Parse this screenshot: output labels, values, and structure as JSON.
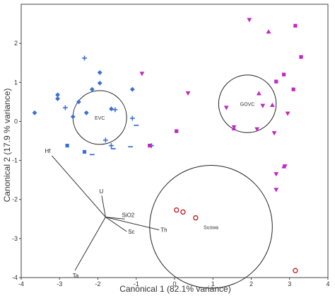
{
  "chart_data": {
    "type": "scatter",
    "title": "",
    "xlabel": "Canonical 1 (82.1% variance)",
    "ylabel": "Canonical 2 (17.9 % variance)",
    "xlim": [
      -4,
      4
    ],
    "ylim": [
      -4,
      3
    ],
    "xticks": [
      "-4",
      "-3",
      "-2",
      "-1",
      "0",
      "1",
      "2",
      "3",
      "4"
    ],
    "yticks": [
      "-4",
      "-3",
      "-2",
      "-1",
      "0",
      "1",
      "2"
    ],
    "grid": false,
    "colors": {
      "blue": "#3b6fd6",
      "magenta": "#c326c3",
      "red": "#c0242b",
      "ink": "#222222"
    },
    "series": [
      {
        "color": "#3b6fd6",
        "marker": "diamond",
        "points": [
          [
            -3.65,
            0.22
          ],
          [
            -3.05,
            0.68
          ],
          [
            -3.05,
            0.58
          ],
          [
            -2.65,
            0.12
          ],
          [
            -2.5,
            0.5
          ],
          [
            -2.3,
            0.22
          ],
          [
            -2.15,
            0.82
          ],
          [
            -1.95,
            1.25
          ],
          [
            -1.95,
            0.98
          ],
          [
            -1.65,
            0.32
          ],
          [
            -1.1,
            0.82
          ]
        ]
      },
      {
        "color": "#3b6fd6",
        "marker": "plus",
        "points": [
          [
            -2.35,
            1.62
          ],
          [
            -2.85,
            0.35
          ],
          [
            -1.1,
            0.08
          ],
          [
            -1.8,
            -0.48
          ],
          [
            -1.65,
            -0.62
          ],
          [
            -0.6,
            -0.62
          ],
          [
            -1.55,
            0.3
          ]
        ]
      },
      {
        "color": "#3b6fd6",
        "marker": "square",
        "points": [
          [
            -2.8,
            -0.62
          ],
          [
            -2.35,
            -0.78
          ]
        ]
      },
      {
        "color": "#3b6fd6",
        "marker": "dash",
        "points": [
          [
            -2.15,
            -0.85
          ],
          [
            -1.6,
            -0.7
          ],
          [
            -1.15,
            -0.65
          ],
          [
            -1.0,
            -0.1
          ]
        ]
      },
      {
        "color": "#c326c3",
        "marker": "triangle-down",
        "points": [
          [
            -0.85,
            1.22
          ],
          [
            0.35,
            0.72
          ],
          [
            1.95,
            2.6
          ],
          [
            1.35,
            0.35
          ],
          [
            1.55,
            -0.15
          ],
          [
            2.15,
            -0.2
          ],
          [
            2.6,
            -0.3
          ],
          [
            2.3,
            0.4
          ],
          [
            2.65,
            -1.75
          ],
          [
            2.65,
            -1.35
          ],
          [
            2.88,
            -1.15
          ],
          [
            2.95,
            0.2
          ]
        ]
      },
      {
        "color": "#c326c3",
        "marker": "triangle-up",
        "points": [
          [
            2.45,
            2.3
          ],
          [
            2.2,
            0.72
          ],
          [
            2.55,
            0.42
          ],
          [
            1.55,
            -0.18
          ],
          [
            2.85,
            -1.15
          ]
        ]
      },
      {
        "color": "#c326c3",
        "marker": "square",
        "points": [
          [
            -0.65,
            -0.62
          ],
          [
            0.05,
            -0.25
          ],
          [
            3.15,
            2.45
          ],
          [
            2.85,
            1.2
          ],
          [
            2.65,
            1.02
          ],
          [
            3.1,
            0.82
          ],
          [
            3.3,
            1.65
          ]
        ]
      },
      {
        "color": "#c0242b",
        "marker": "circle-open",
        "points": [
          [
            0.05,
            -2.27
          ],
          [
            0.22,
            -2.32
          ],
          [
            0.55,
            -2.47
          ],
          [
            3.15,
            -3.82
          ]
        ]
      }
    ],
    "circles": [
      {
        "label": "EVC",
        "cx": -1.95,
        "cy": 0.1,
        "r": 0.7
      },
      {
        "label": "GOVC",
        "cx": 1.9,
        "cy": 0.45,
        "r": 0.75
      },
      {
        "label": "Suswa",
        "cx": 0.95,
        "cy": -2.7,
        "r": 1.6
      }
    ],
    "vectors": {
      "origin": [
        -1.8,
        -2.45
      ],
      "items": [
        {
          "label": "Hf",
          "x": -3.2,
          "y": -0.88
        },
        {
          "label": "U",
          "x": -1.9,
          "y": -1.9
        },
        {
          "label": "SiO2",
          "x": -1.3,
          "y": -2.5
        },
        {
          "label": "Th",
          "x": -0.4,
          "y": -2.78
        },
        {
          "label": "Sc",
          "x": -1.25,
          "y": -2.82
        },
        {
          "label": "Ta",
          "x": -2.6,
          "y": -3.82
        }
      ]
    }
  }
}
